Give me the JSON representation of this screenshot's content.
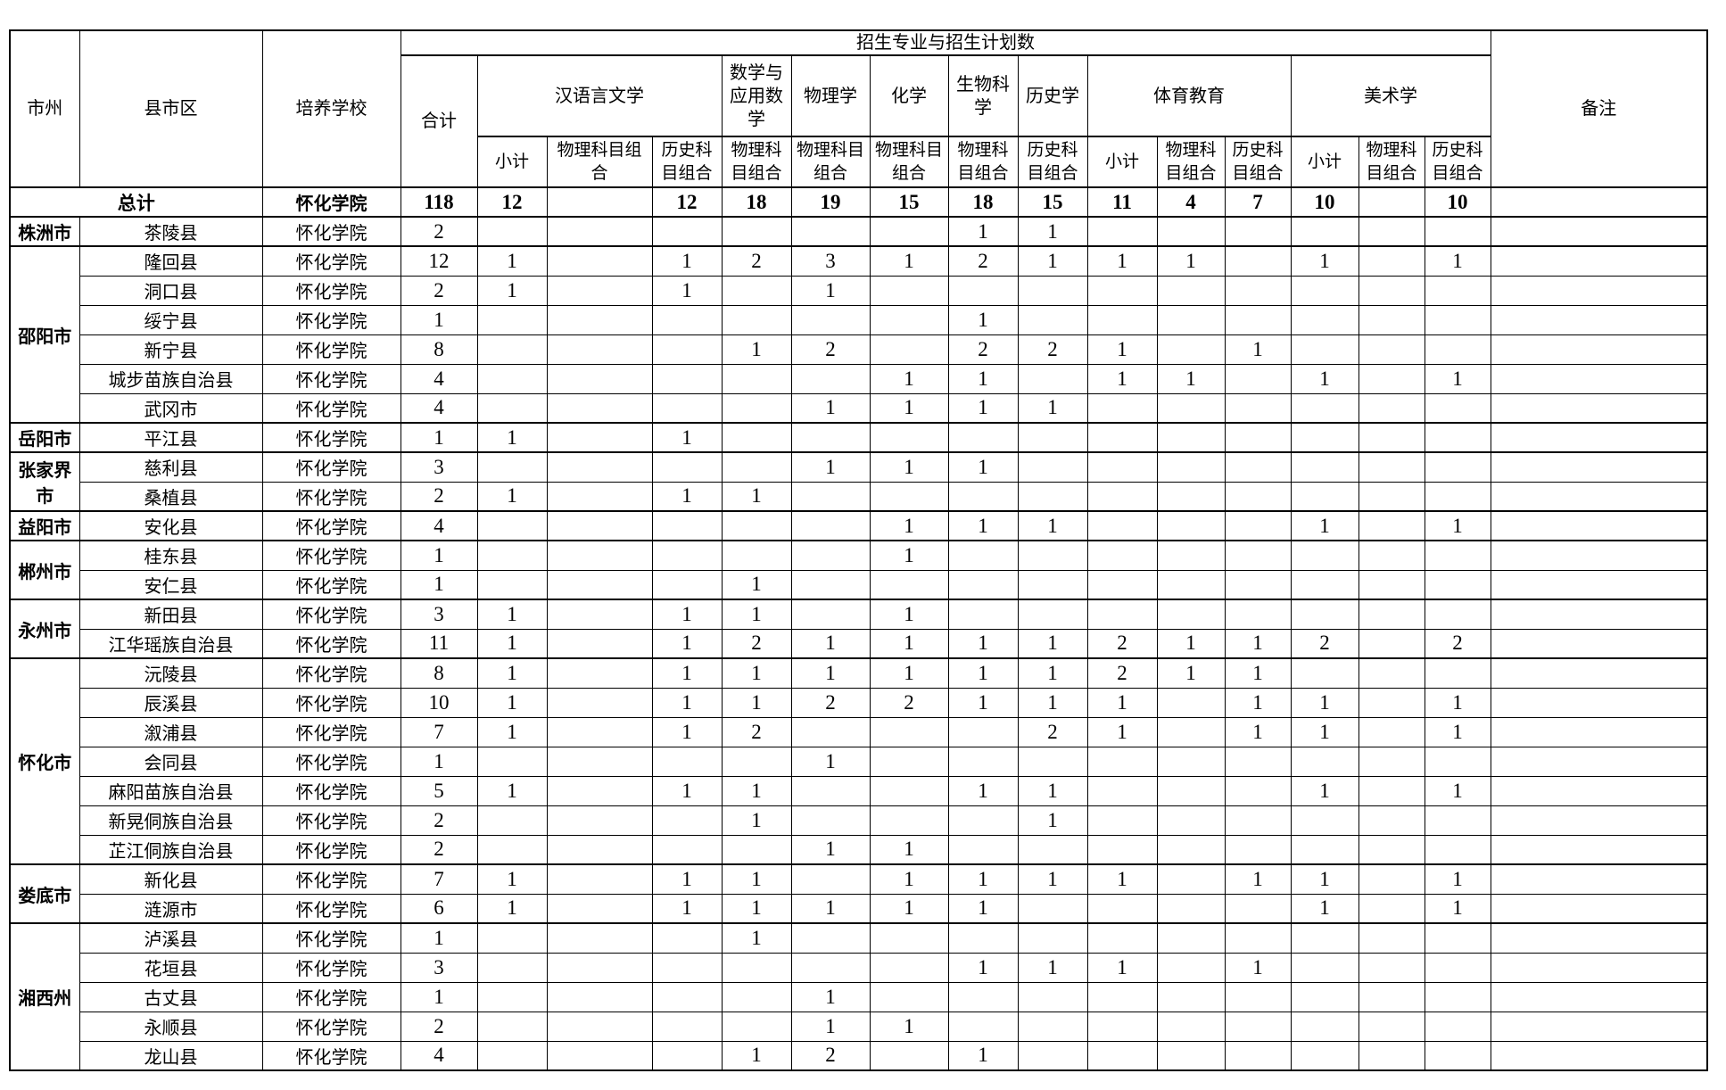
{
  "table": {
    "columns": {
      "city": "市州",
      "county": "县市区",
      "school": "培养学校",
      "banner": "招生专业与招生计划数",
      "total": "合计",
      "remark": "备注",
      "subjects": [
        {
          "name": "汉语言文学",
          "subcols": [
            "小计",
            "物理科目组合",
            "历史科目组合"
          ]
        },
        {
          "name": "数学与应用数学",
          "subcols": [
            "物理科目组合"
          ]
        },
        {
          "name": "物理学",
          "subcols": [
            "物理科目组合"
          ]
        },
        {
          "name": "化学",
          "subcols": [
            "物理科目组合"
          ]
        },
        {
          "name": "生物科学",
          "subcols": [
            "物理科目组合"
          ]
        },
        {
          "name": "历史学",
          "subcols": [
            "历史科目组合"
          ]
        },
        {
          "name": "体育教育",
          "subcols": [
            "小计",
            "物理科目组合",
            "历史科目组合"
          ]
        },
        {
          "name": "美术学",
          "subcols": [
            "小计",
            "物理科目组合",
            "历史科目组合"
          ]
        }
      ]
    },
    "total_row": {
      "label": "总计",
      "school": "怀化学院",
      "values": [
        "118",
        "12",
        "",
        "12",
        "18",
        "19",
        "15",
        "18",
        "15",
        "11",
        "4",
        "7",
        "10",
        "",
        "10",
        ""
      ]
    },
    "groups": [
      {
        "city": "株洲市",
        "rows": [
          {
            "county": "茶陵县",
            "school": "怀化学院",
            "values": [
              "2",
              "",
              "",
              "",
              "",
              "",
              "",
              "1",
              "1",
              "",
              "",
              "",
              "",
              "",
              "",
              ""
            ]
          }
        ]
      },
      {
        "city": "邵阳市",
        "rows": [
          {
            "county": "隆回县",
            "school": "怀化学院",
            "values": [
              "12",
              "1",
              "",
              "1",
              "2",
              "3",
              "1",
              "2",
              "1",
              "1",
              "1",
              "",
              "1",
              "",
              "1",
              ""
            ]
          },
          {
            "county": "洞口县",
            "school": "怀化学院",
            "values": [
              "2",
              "1",
              "",
              "1",
              "",
              "1",
              "",
              "",
              "",
              "",
              "",
              "",
              "",
              "",
              "",
              ""
            ]
          },
          {
            "county": "绥宁县",
            "school": "怀化学院",
            "values": [
              "1",
              "",
              "",
              "",
              "",
              "",
              "",
              "1",
              "",
              "",
              "",
              "",
              "",
              "",
              "",
              ""
            ]
          },
          {
            "county": "新宁县",
            "school": "怀化学院",
            "values": [
              "8",
              "",
              "",
              "",
              "1",
              "2",
              "",
              "2",
              "2",
              "1",
              "",
              "1",
              "",
              "",
              "",
              ""
            ]
          },
          {
            "county": "城步苗族自治县",
            "school": "怀化学院",
            "values": [
              "4",
              "",
              "",
              "",
              "",
              "",
              "1",
              "1",
              "",
              "1",
              "1",
              "",
              "1",
              "",
              "1",
              ""
            ]
          },
          {
            "county": "武冈市",
            "school": "怀化学院",
            "values": [
              "4",
              "",
              "",
              "",
              "",
              "1",
              "1",
              "1",
              "1",
              "",
              "",
              "",
              "",
              "",
              "",
              ""
            ]
          }
        ]
      },
      {
        "city": "岳阳市",
        "rows": [
          {
            "county": "平江县",
            "school": "怀化学院",
            "values": [
              "1",
              "1",
              "",
              "1",
              "",
              "",
              "",
              "",
              "",
              "",
              "",
              "",
              "",
              "",
              "",
              ""
            ]
          }
        ]
      },
      {
        "city": "张家界市",
        "rows": [
          {
            "county": "慈利县",
            "school": "怀化学院",
            "values": [
              "3",
              "",
              "",
              "",
              "",
              "1",
              "1",
              "1",
              "",
              "",
              "",
              "",
              "",
              "",
              "",
              ""
            ]
          },
          {
            "county": "桑植县",
            "school": "怀化学院",
            "values": [
              "2",
              "1",
              "",
              "1",
              "1",
              "",
              "",
              "",
              "",
              "",
              "",
              "",
              "",
              "",
              "",
              ""
            ]
          }
        ]
      },
      {
        "city": "益阳市",
        "rows": [
          {
            "county": "安化县",
            "school": "怀化学院",
            "values": [
              "4",
              "",
              "",
              "",
              "",
              "",
              "1",
              "1",
              "1",
              "",
              "",
              "",
              "1",
              "",
              "1",
              ""
            ]
          }
        ]
      },
      {
        "city": "郴州市",
        "rows": [
          {
            "county": "桂东县",
            "school": "怀化学院",
            "values": [
              "1",
              "",
              "",
              "",
              "",
              "",
              "1",
              "",
              "",
              "",
              "",
              "",
              "",
              "",
              "",
              ""
            ]
          },
          {
            "county": "安仁县",
            "school": "怀化学院",
            "values": [
              "1",
              "",
              "",
              "",
              "1",
              "",
              "",
              "",
              "",
              "",
              "",
              "",
              "",
              "",
              "",
              ""
            ]
          }
        ]
      },
      {
        "city": "永州市",
        "rows": [
          {
            "county": "新田县",
            "school": "怀化学院",
            "values": [
              "3",
              "1",
              "",
              "1",
              "1",
              "",
              "1",
              "",
              "",
              "",
              "",
              "",
              "",
              "",
              "",
              ""
            ]
          },
          {
            "county": "江华瑶族自治县",
            "school": "怀化学院",
            "values": [
              "11",
              "1",
              "",
              "1",
              "2",
              "1",
              "1",
              "1",
              "1",
              "2",
              "1",
              "1",
              "2",
              "",
              "2",
              ""
            ]
          }
        ]
      },
      {
        "city": "怀化市",
        "rows": [
          {
            "county": "沅陵县",
            "school": "怀化学院",
            "values": [
              "8",
              "1",
              "",
              "1",
              "1",
              "1",
              "1",
              "1",
              "1",
              "2",
              "1",
              "1",
              "",
              "",
              "",
              ""
            ]
          },
          {
            "county": "辰溪县",
            "school": "怀化学院",
            "values": [
              "10",
              "1",
              "",
              "1",
              "1",
              "2",
              "2",
              "1",
              "1",
              "1",
              "",
              "1",
              "1",
              "",
              "1",
              ""
            ]
          },
          {
            "county": "溆浦县",
            "school": "怀化学院",
            "values": [
              "7",
              "1",
              "",
              "1",
              "2",
              "",
              "",
              "",
              "2",
              "1",
              "",
              "1",
              "1",
              "",
              "1",
              ""
            ]
          },
          {
            "county": "会同县",
            "school": "怀化学院",
            "values": [
              "1",
              "",
              "",
              "",
              "",
              "1",
              "",
              "",
              "",
              "",
              "",
              "",
              "",
              "",
              "",
              ""
            ]
          },
          {
            "county": "麻阳苗族自治县",
            "school": "怀化学院",
            "values": [
              "5",
              "1",
              "",
              "1",
              "1",
              "",
              "",
              "1",
              "1",
              "",
              "",
              "",
              "1",
              "",
              "1",
              ""
            ]
          },
          {
            "county": "新晃侗族自治县",
            "school": "怀化学院",
            "values": [
              "2",
              "",
              "",
              "",
              "1",
              "",
              "",
              "",
              "1",
              "",
              "",
              "",
              "",
              "",
              "",
              ""
            ]
          },
          {
            "county": "芷江侗族自治县",
            "school": "怀化学院",
            "values": [
              "2",
              "",
              "",
              "",
              "",
              "1",
              "1",
              "",
              "",
              "",
              "",
              "",
              "",
              "",
              "",
              ""
            ]
          }
        ]
      },
      {
        "city": "娄底市",
        "rows": [
          {
            "county": "新化县",
            "school": "怀化学院",
            "values": [
              "7",
              "1",
              "",
              "1",
              "1",
              "",
              "1",
              "1",
              "1",
              "1",
              "",
              "1",
              "1",
              "",
              "1",
              ""
            ]
          },
          {
            "county": "涟源市",
            "school": "怀化学院",
            "values": [
              "6",
              "1",
              "",
              "1",
              "1",
              "1",
              "1",
              "1",
              "",
              "",
              "",
              "",
              "1",
              "",
              "1",
              ""
            ]
          }
        ]
      },
      {
        "city": "湘西州",
        "rows": [
          {
            "county": "泸溪县",
            "school": "怀化学院",
            "values": [
              "1",
              "",
              "",
              "",
              "1",
              "",
              "",
              "",
              "",
              "",
              "",
              "",
              "",
              "",
              "",
              ""
            ]
          },
          {
            "county": "花垣县",
            "school": "怀化学院",
            "values": [
              "3",
              "",
              "",
              "",
              "",
              "",
              "",
              "1",
              "1",
              "1",
              "",
              "1",
              "",
              "",
              "",
              ""
            ]
          },
          {
            "county": "古丈县",
            "school": "怀化学院",
            "values": [
              "1",
              "",
              "",
              "",
              "",
              "1",
              "",
              "",
              "",
              "",
              "",
              "",
              "",
              "",
              "",
              ""
            ]
          },
          {
            "county": "永顺县",
            "school": "怀化学院",
            "values": [
              "2",
              "",
              "",
              "",
              "",
              "1",
              "1",
              "",
              "",
              "",
              "",
              "",
              "",
              "",
              "",
              ""
            ]
          },
          {
            "county": "龙山县",
            "school": "怀化学院",
            "values": [
              "4",
              "",
              "",
              "",
              "1",
              "2",
              "",
              "1",
              "",
              "",
              "",
              "",
              "",
              "",
              "",
              ""
            ]
          }
        ]
      }
    ]
  }
}
